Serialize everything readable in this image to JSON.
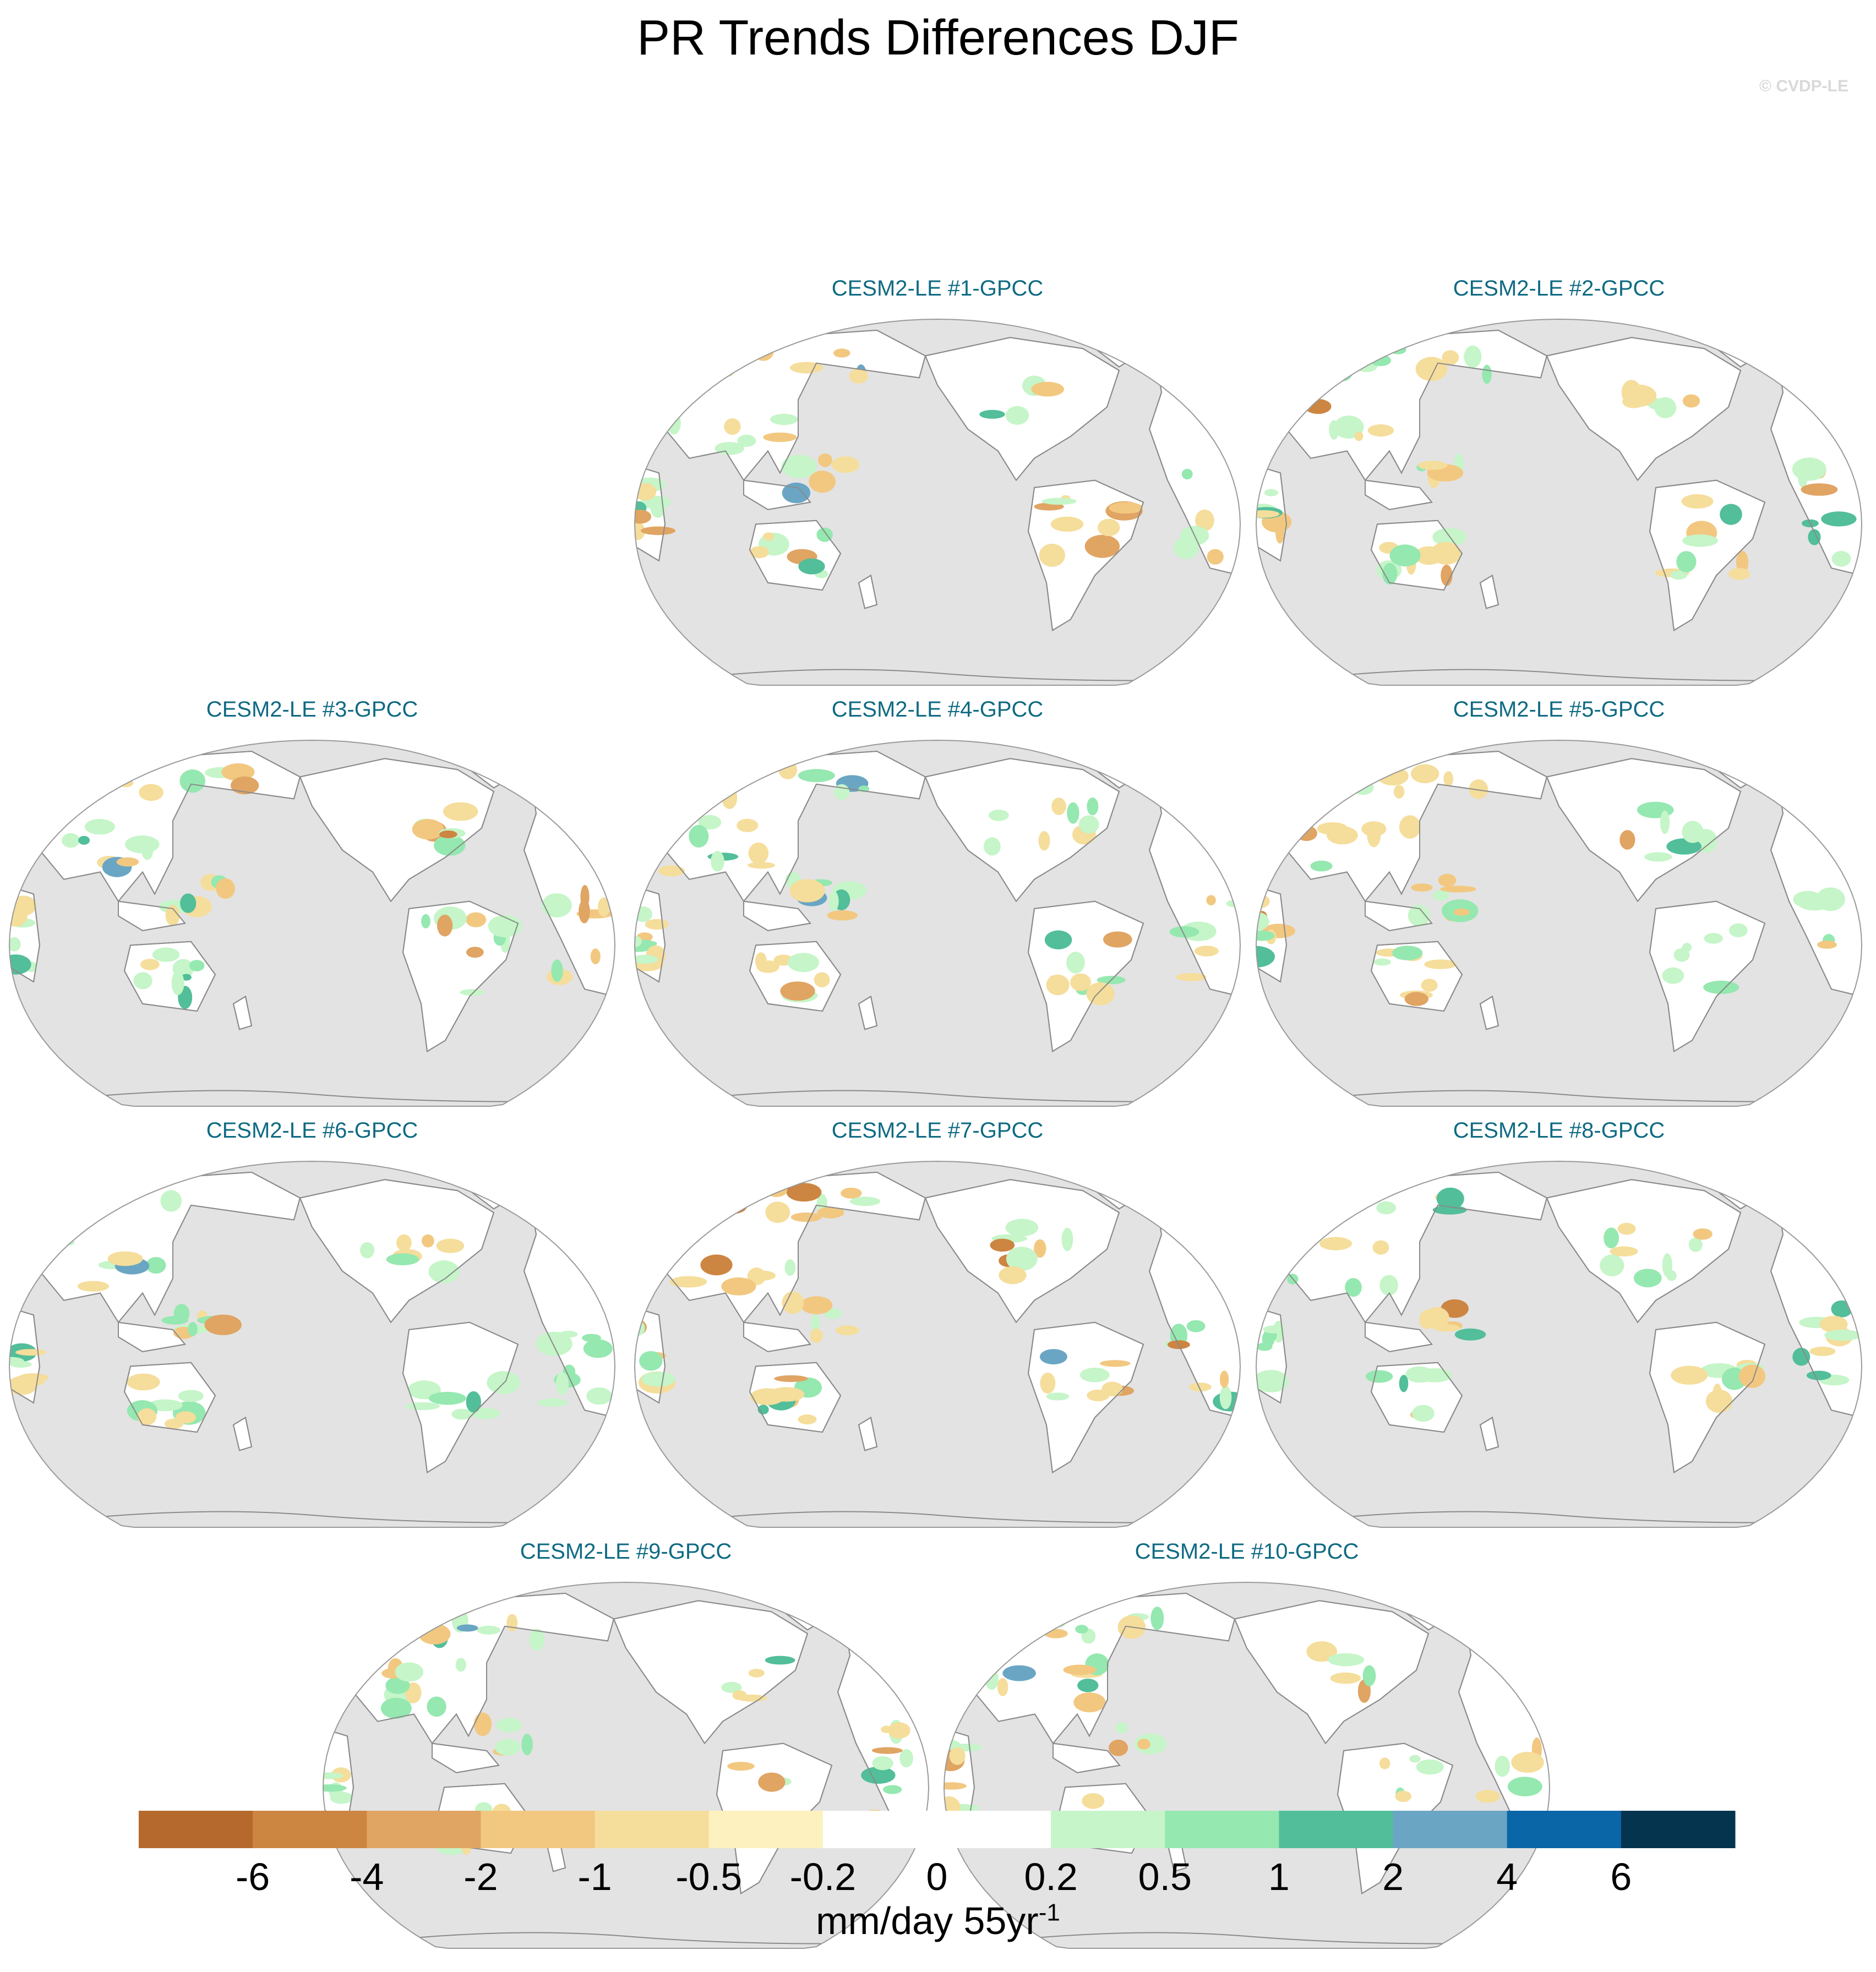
{
  "title": "PR Trends Differences DJF",
  "watermark": "© CVDP-LE",
  "chart_data": {
    "type": "heatmap",
    "projection": "Robinson",
    "panels": [
      {
        "title": "CESM2-LE #1-GPCC"
      },
      {
        "title": "CESM2-LE #2-GPCC"
      },
      {
        "title": "CESM2-LE #3-GPCC"
      },
      {
        "title": "CESM2-LE #4-GPCC"
      },
      {
        "title": "CESM2-LE #5-GPCC"
      },
      {
        "title": "CESM2-LE #6-GPCC"
      },
      {
        "title": "CESM2-LE #7-GPCC"
      },
      {
        "title": "CESM2-LE #8-GPCC"
      },
      {
        "title": "CESM2-LE #9-GPCC"
      },
      {
        "title": "CESM2-LE #10-GPCC"
      }
    ],
    "colorbar": {
      "levels": [
        "-6",
        "-4",
        "-2",
        "-1",
        "-0.5",
        "-0.2",
        "0",
        "0.2",
        "0.5",
        "1",
        "2",
        "4",
        "6"
      ],
      "colors": [
        "#b5692c",
        "#cd8542",
        "#e0a463",
        "#f2c881",
        "#f5dd9b",
        "#fdf1c0",
        "#ffffff",
        "#ffffff",
        "#c5f5c8",
        "#95e8b0",
        "#52be9a",
        "#6aa6c4",
        "#0a66a6",
        "#05344f"
      ],
      "units_main": "mm/day 55yr",
      "units_exp": "-1"
    },
    "colors": {
      "ocean": "#e3e3e3",
      "land_neutral": "#ffffff",
      "coast": "#8a8a8a"
    }
  }
}
